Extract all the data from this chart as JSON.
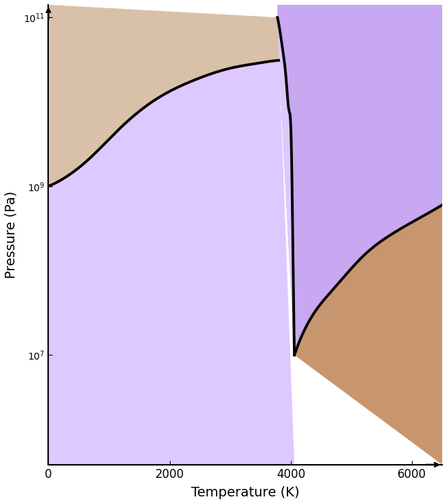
{
  "xlabel": "Temperature (K)",
  "ylabel": "Pressure (Pa)",
  "xlim": [
    0,
    6500
  ],
  "ylim_log_min": 5.7,
  "ylim_log_max": 11.15,
  "xticks": [
    0,
    2000,
    4000,
    6000
  ],
  "yticks": [
    10000000.0,
    1000000000.0,
    100000000000.0
  ],
  "color_solid": "#d9c0a8",
  "color_liquid_light": "#ddc8ff",
  "color_liquid_dark": "#c8a8f0",
  "color_gas": "#c8966e",
  "linewidth": 2.8,
  "melt_T": [
    0,
    300,
    700,
    1200,
    1800,
    2400,
    3000,
    3500,
    3700,
    3800
  ],
  "melt_P": [
    1000000000.0,
    1300000000.0,
    2200000000.0,
    5000000000.0,
    11000000000.0,
    18000000000.0,
    25000000000.0,
    29000000000.0,
    30500000000.0,
    31000000000.0
  ],
  "vert_T": [
    3780,
    3820,
    3870,
    3920,
    3970,
    4010,
    4040,
    4060
  ],
  "vert_P": [
    100000000000.0,
    70000000000.0,
    40000000000.0,
    20000000000.0,
    8000000000.0,
    3000000000.0,
    100000000.0,
    10000000.0
  ],
  "gas_T": [
    4060,
    4300,
    4700,
    5200,
    5700,
    6200,
    6500
  ],
  "gas_P": [
    10000000.0,
    25000000.0,
    60000000.0,
    150000000.0,
    280000000.0,
    450000000.0,
    600000000.0
  ]
}
